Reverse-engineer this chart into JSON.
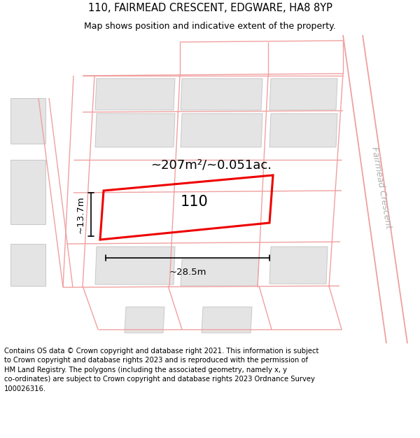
{
  "title_line1": "110, FAIRMEAD CRESCENT, EDGWARE, HA8 8YP",
  "title_line2": "Map shows position and indicative extent of the property.",
  "footer_text": "Contains OS data © Crown copyright and database right 2021. This information is subject\nto Crown copyright and database rights 2023 and is reproduced with the permission of\nHM Land Registry. The polygons (including the associated geometry, namely x, y\nco-ordinates) are subject to Crown copyright and database rights 2023 Ordnance Survey\n100026316.",
  "area_label": "~207m²/~0.051ac.",
  "number_label": "110",
  "dim_width": "~28.5m",
  "dim_height": "~13.7m",
  "road_label": "Fairmead Crescent",
  "bg_color": "#ffffff",
  "building_fill": "#e4e4e4",
  "building_edge": "#c8c8c8",
  "road_line_color": "#f0a0a0",
  "main_plot_color": "#ee0000",
  "title_fontsize": 10.5,
  "subtitle_fontsize": 9,
  "footer_fontsize": 7.2,
  "label_fontsize": 13,
  "number_fontsize": 15,
  "dim_fontsize": 9.5,
  "road_label_fontsize": 9,
  "road_label_color": "#b0b0b0"
}
